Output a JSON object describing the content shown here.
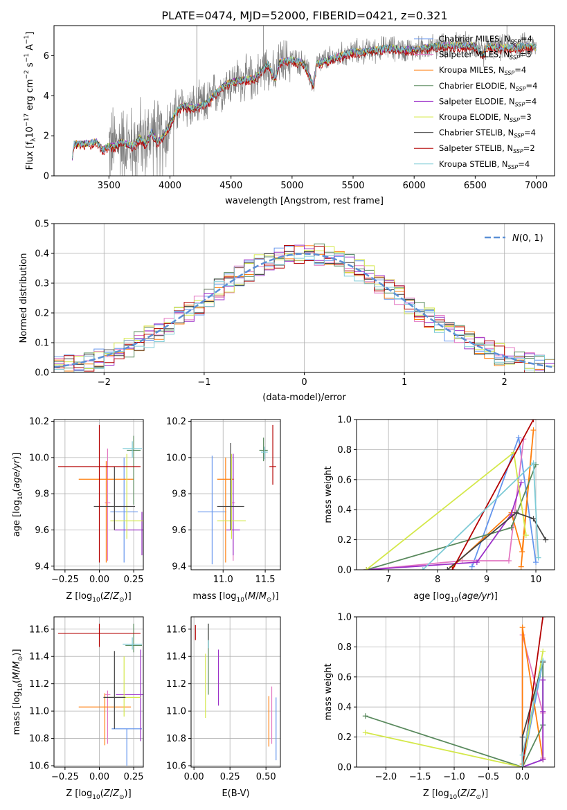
{
  "page_title": "PLATE=0474, MJD=52000, FIBERID=0421, z=0.321",
  "models": [
    {
      "name": "Chabrier MILES, N_SSP=4",
      "label": "Chabrier MILES, N",
      "sub": "SSP",
      "nssp": "=4",
      "color": "#6495ed"
    },
    {
      "name": "Salpeter MILES, N_SSP=5",
      "label": "Salpeter MILES, N",
      "sub": "SSP",
      "nssp": "=5",
      "color": "#e377c2"
    },
    {
      "name": "Kroupa MILES, N_SSP=4",
      "label": "Kroupa MILES, N",
      "sub": "SSP",
      "nssp": "=4",
      "color": "#ff7f0e"
    },
    {
      "name": "Chabrier ELODIE, N_SSP=4",
      "label": "Chabrier ELODIE, N",
      "sub": "SSP",
      "nssp": "=4",
      "color": "#5a8a5e"
    },
    {
      "name": "Salpeter ELODIE, N_SSP=4",
      "label": "Salpeter ELODIE, N",
      "sub": "SSP",
      "nssp": "=4",
      "color": "#9b30c8"
    },
    {
      "name": "Kroupa ELODIE, N_SSP=3",
      "label": "Kroupa ELODIE, N",
      "sub": "SSP",
      "nssp": "=3",
      "color": "#d4e84a"
    },
    {
      "name": "Chabrier STELIB, N_SSP=4",
      "label": "Chabrier STELIB, N",
      "sub": "SSP",
      "nssp": "=4",
      "color": "#444444"
    },
    {
      "name": "Salpeter STELIB, N_SSP=2",
      "label": "Salpeter STELIB, N",
      "sub": "SSP",
      "nssp": "=2",
      "color": "#b40000"
    },
    {
      "name": "Kroupa STELIB, N_SSP=4",
      "label": "Kroupa STELIB, N",
      "sub": "SSP",
      "nssp": "=4",
      "color": "#7ecbd6"
    }
  ],
  "chart_data": [
    {
      "id": "spectrum",
      "type": "line",
      "title": "PLATE=0474, MJD=52000, FIBERID=0421, z=0.321",
      "xlabel": "wavelength [Angstrom, rest frame]",
      "ylabel": "Flux [f_λ 10^-17 erg cm^-2 s^-1 A^-1]",
      "ylabel_parts": [
        "Flux [f",
        "λ",
        "10",
        "−17",
        " erg cm",
        "−2",
        " s",
        "−1",
        " A",
        "−1",
        "]"
      ],
      "xlim": [
        3050,
        7150
      ],
      "ylim": [
        0,
        7.5
      ],
      "xticks": [
        3500,
        4000,
        4500,
        5000,
        5500,
        6000,
        6500,
        7000
      ],
      "yticks": [
        0,
        2,
        4,
        6
      ],
      "data_color": "#808080",
      "model_shape": {
        "x": [
          3200,
          3215,
          3300,
          3400,
          3450,
          3500,
          3550,
          3600,
          3700,
          3750,
          3800,
          3850,
          3900,
          3950,
          4000,
          4050,
          4100,
          4200,
          4300,
          4400,
          4500,
          4600,
          4700,
          4800,
          4862,
          4900,
          5000,
          5100,
          5175,
          5200,
          5300,
          5400,
          5500,
          5600,
          5700,
          5800,
          5900,
          6000,
          6100,
          6200,
          6300,
          6400,
          6500,
          6563,
          6600,
          6700,
          6800,
          6900,
          7000
        ],
        "y": [
          0.9,
          1.6,
          1.6,
          1.7,
          1.3,
          1.5,
          1.5,
          1.7,
          1.5,
          1.9,
          1.6,
          2.2,
          1.7,
          2.0,
          2.6,
          3.2,
          3.5,
          3.4,
          3.6,
          4.3,
          4.7,
          4.8,
          4.9,
          5.6,
          4.8,
          5.7,
          5.8,
          5.6,
          4.5,
          5.6,
          5.8,
          6.0,
          6.2,
          6.2,
          6.3,
          6.4,
          6.3,
          6.3,
          6.4,
          6.5,
          6.5,
          6.5,
          6.5,
          6.0,
          6.5,
          6.4,
          6.4,
          6.5,
          6.4
        ]
      }
    },
    {
      "id": "residuals",
      "type": "line",
      "xlabel": "(data-model)/error",
      "ylabel": "Normed distribution",
      "xlim": [
        -2.5,
        2.5
      ],
      "ylim": [
        0,
        0.5
      ],
      "xticks": [
        -2,
        -1,
        0,
        1,
        2
      ],
      "yticks": [
        0.0,
        0.1,
        0.2,
        0.3,
        0.4,
        0.5
      ],
      "curve_label": "N(0,1)",
      "curve_color": "#5b8fd6"
    },
    {
      "id": "age-vs-z",
      "type": "scatter",
      "xlabel": "Z [log10(Z/Z☉)]",
      "ylabel": "age [log10(age/yr)]",
      "xlim": [
        -0.33,
        0.32
      ],
      "ylim": [
        9.38,
        10.21
      ],
      "xticks": [
        -0.25,
        0.0,
        0.25
      ],
      "yticks": [
        9.4,
        9.6,
        9.8,
        10.0,
        10.2
      ],
      "points": [
        {
          "model": 0,
          "x": 0.18,
          "y": 9.7,
          "xerr": 0.1,
          "yerr_lo": 0.28,
          "yerr_hi": 0.3
        },
        {
          "model": 1,
          "x": 0.06,
          "y": 9.75,
          "xerr": 0.02,
          "yerr_lo": 0.32,
          "yerr_hi": 0.3
        },
        {
          "model": 2,
          "x": 0.05,
          "y": 9.88,
          "xerr": 0.2,
          "yerr_lo": 0.46,
          "yerr_hi": 0.1
        },
        {
          "model": 3,
          "x": 0.25,
          "y": 10.04,
          "xerr": 0.05,
          "yerr_lo": 0.3,
          "yerr_hi": 0.08
        },
        {
          "model": 4,
          "x": 0.31,
          "y": 9.6,
          "xerr": 0.2,
          "yerr_lo": 0.14,
          "yerr_hi": 0.1
        },
        {
          "model": 5,
          "x": 0.2,
          "y": 9.65,
          "xerr": 0.12,
          "yerr_lo": 0.1,
          "yerr_hi": 0.37
        },
        {
          "model": 6,
          "x": 0.11,
          "y": 9.73,
          "xerr": 0.15,
          "yerr_lo": 0.13,
          "yerr_hi": 0.22
        },
        {
          "model": 7,
          "x": 0.0,
          "y": 9.95,
          "xerr": 0.3,
          "yerr_lo": 0.53,
          "yerr_hi": 0.23
        },
        {
          "model": 8,
          "x": 0.24,
          "y": 10.05,
          "xerr": 0.07,
          "yerr_lo": 0.05,
          "yerr_hi": 0.04
        }
      ]
    },
    {
      "id": "age-vs-mass",
      "type": "scatter",
      "xlabel": "mass [log10(M/M☉)]",
      "ylabel": "",
      "xlim": [
        10.62,
        11.68
      ],
      "ylim": [
        9.38,
        10.21
      ],
      "xticks": [
        11.0,
        11.5
      ],
      "yticks": [
        9.4,
        9.6,
        9.8,
        10.0,
        10.2
      ],
      "points": [
        {
          "model": 0,
          "x": 10.87,
          "y": 9.7,
          "xerr": 0.17,
          "yerr_lo": 0.29,
          "yerr_hi": 0.31
        },
        {
          "model": 1,
          "x": 11.12,
          "y": 9.75,
          "xerr": 0.02,
          "yerr_lo": 0.32,
          "yerr_hi": 0.27
        },
        {
          "model": 2,
          "x": 11.03,
          "y": 9.88,
          "xerr": 0.1,
          "yerr_lo": 0.46,
          "yerr_hi": 0.12
        },
        {
          "model": 3,
          "x": 11.48,
          "y": 10.04,
          "xerr": 0.05,
          "yerr_lo": 0.06,
          "yerr_hi": 0.07
        },
        {
          "model": 4,
          "x": 11.12,
          "y": 9.6,
          "xerr": 0.08,
          "yerr_lo": 0.14,
          "yerr_hi": 0.42
        },
        {
          "model": 5,
          "x": 11.1,
          "y": 9.65,
          "xerr": 0.17,
          "yerr_lo": 0.1,
          "yerr_hi": 0.37
        },
        {
          "model": 6,
          "x": 11.09,
          "y": 9.73,
          "xerr": 0.16,
          "yerr_lo": 0.13,
          "yerr_hi": 0.35
        },
        {
          "model": 7,
          "x": 11.59,
          "y": 9.95,
          "xerr": 0.04,
          "yerr_lo": 0.1,
          "yerr_hi": 0.23
        },
        {
          "model": 8,
          "x": 11.49,
          "y": 10.03,
          "xerr": 0.04,
          "yerr_lo": 0.04,
          "yerr_hi": 0.03
        }
      ]
    },
    {
      "id": "mass-weight-vs-age",
      "type": "line",
      "xlabel": "age [log10(age/yr)]",
      "ylabel": "mass weight",
      "xlim": [
        6.35,
        10.38
      ],
      "ylim": [
        0.0,
        1.0
      ],
      "xticks": [
        7,
        8,
        9,
        10
      ],
      "yticks": [
        0.0,
        0.2,
        0.4,
        0.6,
        0.8,
        1.0
      ],
      "series": [
        {
          "model": 0,
          "x": [
            8.7,
            9.65,
            10.0
          ],
          "y": [
            0.02,
            0.88,
            0.05
          ]
        },
        {
          "model": 1,
          "x": [
            6.55,
            8.5,
            9.45,
            9.75
          ],
          "y": [
            0.0,
            0.06,
            0.06,
            0.87
          ]
        },
        {
          "model": 2,
          "x": [
            8.3,
            9.5,
            9.72,
            9.95,
            9.7
          ],
          "y": [
            0.02,
            0.38,
            0.12,
            0.93,
            0.02
          ]
        },
        {
          "model": 3,
          "x": [
            6.55,
            9.5,
            10.0
          ],
          "y": [
            0.0,
            0.28,
            0.7
          ]
        },
        {
          "model": 4,
          "x": [
            6.55,
            8.8,
            9.5,
            9.7
          ],
          "y": [
            0.0,
            0.05,
            0.37,
            0.58
          ]
        },
        {
          "model": 5,
          "x": [
            6.55,
            9.55,
            9.8
          ],
          "y": [
            0.0,
            0.78,
            0.23
          ]
        },
        {
          "model": 6,
          "x": [
            8.2,
            9.6,
            9.95,
            10.2
          ],
          "y": [
            0.0,
            0.38,
            0.34,
            0.2
          ]
        },
        {
          "model": 7,
          "x": [
            8.3,
            9.95
          ],
          "y": [
            0.0,
            1.0
          ]
        },
        {
          "model": 8,
          "x": [
            7.7,
            9.95,
            10.05
          ],
          "y": [
            0.0,
            0.71,
            0.08
          ]
        }
      ]
    },
    {
      "id": "mass-vs-z",
      "type": "scatter",
      "xlabel": "Z [log10(Z/Z☉)]",
      "ylabel": "mass [log10(M/M☉)]",
      "xlim": [
        -0.33,
        0.32
      ],
      "ylim": [
        10.59,
        11.69
      ],
      "xticks": [
        -0.25,
        0.0,
        0.25
      ],
      "yticks": [
        10.6,
        10.8,
        11.0,
        11.2,
        11.4,
        11.6
      ],
      "points": [
        {
          "model": 0,
          "x": 0.2,
          "y": 10.87,
          "xerr": 0.11,
          "yerr_lo": 0.27,
          "yerr_hi": 0.0
        },
        {
          "model": 1,
          "x": 0.06,
          "y": 11.12,
          "xerr": 0.02,
          "yerr_lo": 0.36,
          "yerr_hi": 0.03
        },
        {
          "model": 2,
          "x": 0.04,
          "y": 11.03,
          "xerr": 0.19,
          "yerr_lo": 0.28,
          "yerr_hi": 0.1
        },
        {
          "model": 3,
          "x": 0.25,
          "y": 11.48,
          "xerr": 0.06,
          "yerr_lo": 0.05,
          "yerr_hi": 0.16
        },
        {
          "model": 4,
          "x": 0.3,
          "y": 11.12,
          "xerr": 0.18,
          "yerr_lo": 0.34,
          "yerr_hi": 0.33
        },
        {
          "model": 5,
          "x": 0.18,
          "y": 11.1,
          "xerr": 0.12,
          "yerr_lo": 0.14,
          "yerr_hi": 0.3
        },
        {
          "model": 6,
          "x": 0.11,
          "y": 11.1,
          "xerr": 0.08,
          "yerr_lo": 0.23,
          "yerr_hi": 0.34
        },
        {
          "model": 7,
          "x": 0.0,
          "y": 11.57,
          "xerr": 0.3,
          "yerr_lo": 0.1,
          "yerr_hi": 0.07
        },
        {
          "model": 8,
          "x": 0.24,
          "y": 11.49,
          "xerr": 0.07,
          "yerr_lo": 0.04,
          "yerr_hi": 0.05
        }
      ]
    },
    {
      "id": "mass-vs-ebv",
      "type": "scatter",
      "xlabel": "E(B-V)",
      "ylabel": "",
      "xlim": [
        -0.02,
        0.6
      ],
      "ylim": [
        10.59,
        11.69
      ],
      "xticks": [
        0.0,
        0.25,
        0.5
      ],
      "yticks": [
        10.6,
        10.8,
        11.0,
        11.2,
        11.4,
        11.6
      ],
      "segments": [
        {
          "model": 0,
          "x": 0.57,
          "y_lo": 10.64,
          "y_hi": 11.1
        },
        {
          "model": 1,
          "x": 0.54,
          "y_lo": 10.76,
          "y_hi": 11.18
        },
        {
          "model": 2,
          "x": 0.52,
          "y_lo": 10.74,
          "y_hi": 11.11
        },
        {
          "model": 3,
          "x": 0.1,
          "y_lo": 11.12,
          "y_hi": 11.64
        },
        {
          "model": 4,
          "x": 0.17,
          "y_lo": 11.04,
          "y_hi": 11.45
        },
        {
          "model": 5,
          "x": 0.08,
          "y_lo": 10.95,
          "y_hi": 11.42
        },
        {
          "model": 6,
          "x": 0.1,
          "y_lo": 11.46,
          "y_hi": 11.64
        },
        {
          "model": 7,
          "x": 0.01,
          "y_lo": 11.52,
          "y_hi": 11.63
        },
        {
          "model": 8,
          "x": 0.1,
          "y_lo": 11.46,
          "y_hi": 11.52
        }
      ]
    },
    {
      "id": "mass-weight-vs-z",
      "type": "line",
      "xlabel": "Z [log10(Z/Z☉)]",
      "ylabel": "mass weight",
      "xlim": [
        -2.43,
        0.47
      ],
      "ylim": [
        0.0,
        1.0
      ],
      "xticks": [
        -2.0,
        -1.5,
        -1.0,
        -0.5,
        0.0
      ],
      "yticks": [
        0.0,
        0.2,
        0.4,
        0.6,
        0.8,
        1.0
      ],
      "series": [
        {
          "model": 0,
          "x": [
            0.3,
            0.0,
            0.3,
            0.3
          ],
          "y": [
            0.05,
            0.0,
            0.7,
            0.28
          ]
        },
        {
          "model": 1,
          "x": [
            0.0,
            0.0,
            0.3,
            0.3
          ],
          "y": [
            0.0,
            0.88,
            0.36,
            0.06
          ]
        },
        {
          "model": 2,
          "x": [
            0.0,
            0.0,
            0.3
          ],
          "y": [
            0.02,
            0.93,
            0.05
          ]
        },
        {
          "model": 3,
          "x": [
            -2.3,
            0.0,
            0.3,
            0.3
          ],
          "y": [
            0.34,
            0.0,
            0.28,
            0.7
          ]
        },
        {
          "model": 4,
          "x": [
            0.0,
            0.3,
            0.3,
            0.3
          ],
          "y": [
            0.0,
            0.05,
            0.37,
            0.58
          ]
        },
        {
          "model": 5,
          "x": [
            -2.3,
            0.0,
            0.3
          ],
          "y": [
            0.23,
            0.0,
            0.77
          ]
        },
        {
          "model": 6,
          "x": [
            0.0,
            0.0,
            0.3
          ],
          "y": [
            0.0,
            0.2,
            0.7
          ]
        },
        {
          "model": 7,
          "x": [
            0.0,
            0.3
          ],
          "y": [
            0.0,
            1.0
          ]
        },
        {
          "model": 8,
          "x": [
            0.0,
            0.0,
            0.3
          ],
          "y": [
            0.0,
            0.08,
            0.71
          ]
        }
      ]
    }
  ]
}
